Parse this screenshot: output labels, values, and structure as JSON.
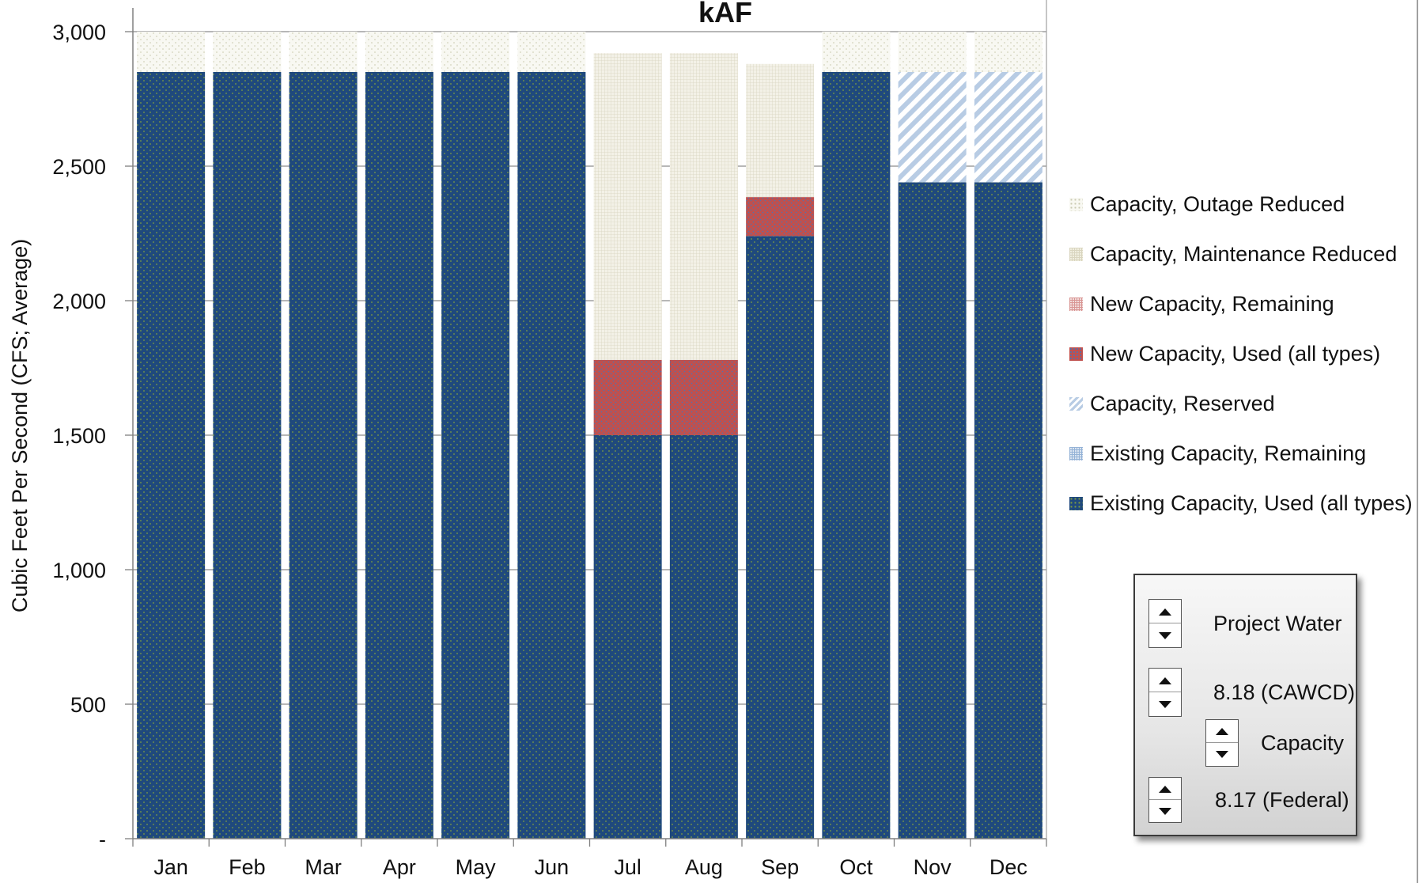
{
  "chart_data": {
    "type": "bar",
    "stacked": true,
    "title": "kAF",
    "ylabel": "Cubic Feet Per Second (CFS; Average)",
    "xlabel": "",
    "ylim": [
      0,
      3000
    ],
    "yticks": [
      0,
      500,
      1000,
      1500,
      2000,
      2500,
      3000
    ],
    "ytick_labels": [
      "-",
      "500",
      "1,000",
      "1,500",
      "2,000",
      "2,500",
      "3,000"
    ],
    "grid": true,
    "legend_position": "right",
    "categories": [
      "Jan",
      "Feb",
      "Mar",
      "Apr",
      "May",
      "Jun",
      "Jul",
      "Aug",
      "Sep",
      "Oct",
      "Nov",
      "Dec"
    ],
    "series": [
      {
        "name": "Existing Capacity, Used (all types)",
        "color": "#1f497d",
        "pattern": "dots-blue",
        "values": [
          2850,
          2850,
          2850,
          2850,
          2850,
          2850,
          1500,
          1500,
          2240,
          2850,
          2440,
          2440
        ]
      },
      {
        "name": "Existing Capacity, Remaining",
        "color": "#b8cce4",
        "pattern": "grid-lightblue",
        "values": [
          0,
          0,
          0,
          0,
          0,
          0,
          0,
          0,
          0,
          0,
          0,
          0
        ]
      },
      {
        "name": "Capacity, Reserved",
        "color": "#b8cce4",
        "pattern": "diagonal-lightblue",
        "values": [
          0,
          0,
          0,
          0,
          0,
          0,
          0,
          0,
          0,
          0,
          410,
          410
        ]
      },
      {
        "name": "New Capacity, Used (all types)",
        "color": "#c0504d",
        "pattern": "dots-red",
        "values": [
          0,
          0,
          0,
          0,
          0,
          0,
          280,
          280,
          145,
          0,
          0,
          0
        ]
      },
      {
        "name": "New Capacity, Remaining",
        "color": "#e6b9b8",
        "pattern": "grid-pink",
        "values": [
          0,
          0,
          0,
          0,
          0,
          0,
          0,
          0,
          0,
          0,
          0,
          0
        ]
      },
      {
        "name": "Capacity, Maintenance Reduced",
        "color": "#eeece1",
        "pattern": "grid-beige",
        "values": [
          0,
          0,
          0,
          0,
          0,
          0,
          1140,
          1140,
          495,
          0,
          0,
          0
        ]
      },
      {
        "name": "Capacity, Outage Reduced",
        "color": "#f4f3ea",
        "pattern": "dots-beige",
        "values": [
          150,
          150,
          150,
          150,
          150,
          150,
          0,
          0,
          0,
          150,
          150,
          150
        ]
      }
    ],
    "legend_order": [
      "Capacity, Outage Reduced",
      "Capacity, Maintenance Reduced",
      "New Capacity, Remaining",
      "New Capacity, Used (all types)",
      "Capacity, Reserved",
      "Existing Capacity, Remaining",
      "Existing Capacity, Used (all types)"
    ]
  },
  "controls": {
    "project_water": "Project Water",
    "cawcd": "8.18 (CAWCD)",
    "capacity": "Capacity",
    "federal": "8.17 (Federal)"
  }
}
